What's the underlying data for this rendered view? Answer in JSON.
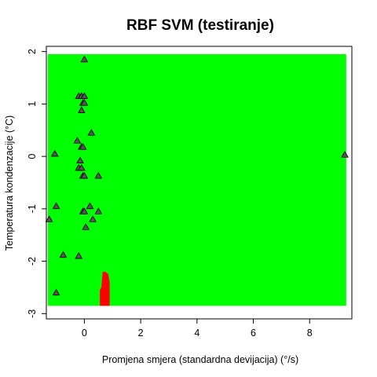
{
  "chart_data": {
    "type": "scatter",
    "title": "RBF SVM (testiranje)",
    "xlabel": "Promjena smjera (standardna devijacija) (°/s)",
    "ylabel": "Temperatura kondenzacije (°C)",
    "xlim": [
      -1.35,
      9.5
    ],
    "ylim": [
      -3.1,
      2.1
    ],
    "x_ticks": [
      0,
      2,
      4,
      6,
      8
    ],
    "y_ticks": [
      -3,
      -2,
      -1,
      0,
      1,
      2
    ],
    "x_tick_labels": [
      "0",
      "2",
      "4",
      "6",
      "8"
    ],
    "y_tick_labels": [
      "-3",
      "-2",
      "-1",
      "0",
      "1",
      "2"
    ],
    "background_region": {
      "color": "#00ff00",
      "x": [
        -1.3,
        9.3
      ],
      "y": [
        -2.85,
        1.95
      ]
    },
    "decision_region": {
      "color": "#ff0000",
      "polygon": [
        [
          0.55,
          -2.85
        ],
        [
          0.55,
          -2.55
        ],
        [
          0.6,
          -2.5
        ],
        [
          0.65,
          -2.2
        ],
        [
          0.75,
          -2.2
        ],
        [
          0.85,
          -2.25
        ],
        [
          0.9,
          -2.4
        ],
        [
          0.9,
          -2.85
        ]
      ]
    },
    "points": [
      {
        "x": 0.0,
        "y": 1.85
      },
      {
        "x": -0.2,
        "y": 1.15
      },
      {
        "x": -0.1,
        "y": 1.15
      },
      {
        "x": 0.0,
        "y": 1.15
      },
      {
        "x": -0.05,
        "y": 1.02
      },
      {
        "x": 0.0,
        "y": 1.02
      },
      {
        "x": -0.1,
        "y": 0.88
      },
      {
        "x": 0.25,
        "y": 0.45
      },
      {
        "x": -0.25,
        "y": 0.3
      },
      {
        "x": -0.1,
        "y": 0.18
      },
      {
        "x": -0.05,
        "y": 0.18
      },
      {
        "x": -1.05,
        "y": 0.05
      },
      {
        "x": -0.15,
        "y": -0.08
      },
      {
        "x": -0.2,
        "y": -0.22
      },
      {
        "x": -0.1,
        "y": -0.22
      },
      {
        "x": -0.05,
        "y": -0.37
      },
      {
        "x": 0.0,
        "y": -0.37
      },
      {
        "x": 0.5,
        "y": -0.37
      },
      {
        "x": -1.0,
        "y": -0.95
      },
      {
        "x": 0.2,
        "y": -0.95
      },
      {
        "x": -0.05,
        "y": -1.05
      },
      {
        "x": 0.0,
        "y": -1.05
      },
      {
        "x": 0.5,
        "y": -1.05
      },
      {
        "x": -1.25,
        "y": -1.2
      },
      {
        "x": 0.3,
        "y": -1.2
      },
      {
        "x": 0.05,
        "y": -1.35
      },
      {
        "x": -0.75,
        "y": -1.88
      },
      {
        "x": -0.2,
        "y": -1.9
      },
      {
        "x": -1.0,
        "y": -2.6
      },
      {
        "x": 9.25,
        "y": 0.03
      }
    ],
    "marker": {
      "shape": "triangle",
      "fill": "#555555",
      "stroke": "#000000"
    },
    "grid": false,
    "legend": "none"
  }
}
